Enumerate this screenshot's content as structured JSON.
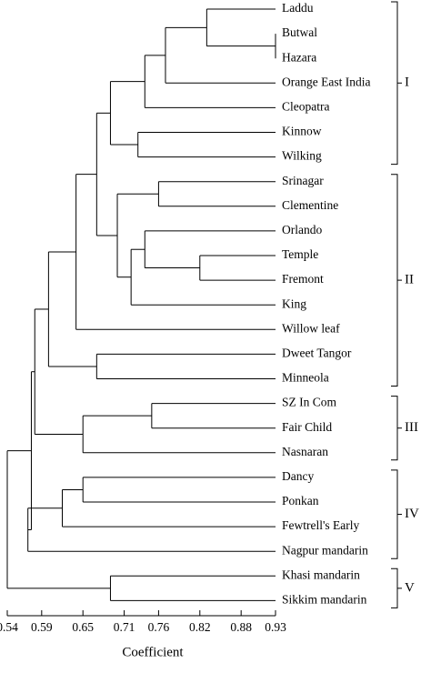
{
  "chart_data": {
    "type": "dendrogram",
    "x_label": "Coefficient",
    "xlim": [
      0.54,
      0.93
    ],
    "xticks": [
      0.54,
      0.59,
      0.65,
      0.71,
      0.76,
      0.82,
      0.88,
      0.93
    ],
    "color": "#000000",
    "tree": {
      "height": 0.54,
      "children": [
        {
          "height": 0.575,
          "children": [
            {
              "height": 0.58,
              "children": [
                {
                  "height": 0.6,
                  "children": [
                    {
                      "height": 0.64,
                      "children": [
                        {
                          "height": 0.67,
                          "children": [
                            {
                              "height": 0.69,
                              "children": [
                                {
                                  "height": 0.74,
                                  "children": [
                                    {
                                      "height": 0.77,
                                      "children": [
                                        {
                                          "height": 0.83,
                                          "children": [
                                            {
                                              "name": "Laddu"
                                            },
                                            {
                                              "height": 0.93,
                                              "children": [
                                                {
                                                  "name": "Butwal"
                                                },
                                                {
                                                  "name": "Hazara"
                                                }
                                              ]
                                            }
                                          ]
                                        },
                                        {
                                          "name": "Orange East India"
                                        }
                                      ]
                                    },
                                    {
                                      "name": "Cleopatra"
                                    }
                                  ]
                                },
                                {
                                  "height": 0.73,
                                  "children": [
                                    {
                                      "name": "Kinnow"
                                    },
                                    {
                                      "name": "Wilking"
                                    }
                                  ]
                                }
                              ]
                            },
                            {
                              "height": 0.7,
                              "children": [
                                {
                                  "height": 0.76,
                                  "children": [
                                    {
                                      "name": "Srinagar"
                                    },
                                    {
                                      "name": "Clementine"
                                    }
                                  ]
                                },
                                {
                                  "height": 0.72,
                                  "children": [
                                    {
                                      "height": 0.74,
                                      "children": [
                                        {
                                          "name": "Orlando"
                                        },
                                        {
                                          "height": 0.82,
                                          "children": [
                                            {
                                              "name": "Temple"
                                            },
                                            {
                                              "name": "Fremont"
                                            }
                                          ]
                                        }
                                      ]
                                    },
                                    {
                                      "name": "King"
                                    }
                                  ]
                                }
                              ]
                            }
                          ]
                        },
                        {
                          "name": "Willow leaf"
                        }
                      ]
                    },
                    {
                      "height": 0.67,
                      "children": [
                        {
                          "name": "Dweet Tangor"
                        },
                        {
                          "name": "Minneola"
                        }
                      ]
                    }
                  ]
                },
                {
                  "height": 0.65,
                  "children": [
                    {
                      "height": 0.75,
                      "children": [
                        {
                          "name": "SZ In Com"
                        },
                        {
                          "name": "Fair Child"
                        }
                      ]
                    },
                    {
                      "name": "Nasnaran"
                    }
                  ]
                }
              ]
            },
            {
              "height": 0.57,
              "children": [
                {
                  "height": 0.62,
                  "children": [
                    {
                      "height": 0.65,
                      "children": [
                        {
                          "name": "Dancy"
                        },
                        {
                          "name": "Ponkan"
                        }
                      ]
                    },
                    {
                      "name": "Fewtrell's Early"
                    }
                  ]
                },
                {
                  "name": "Nagpur mandarin"
                }
              ]
            }
          ]
        },
        {
          "height": 0.69,
          "children": [
            {
              "name": "Khasi mandarin"
            },
            {
              "name": "Sikkim mandarin"
            }
          ]
        }
      ]
    },
    "groups": [
      {
        "label": "I",
        "count": 7
      },
      {
        "label": "II",
        "count": 9
      },
      {
        "label": "III",
        "count": 3
      },
      {
        "label": "IV",
        "count": 4
      },
      {
        "label": "V",
        "count": 2
      }
    ]
  }
}
